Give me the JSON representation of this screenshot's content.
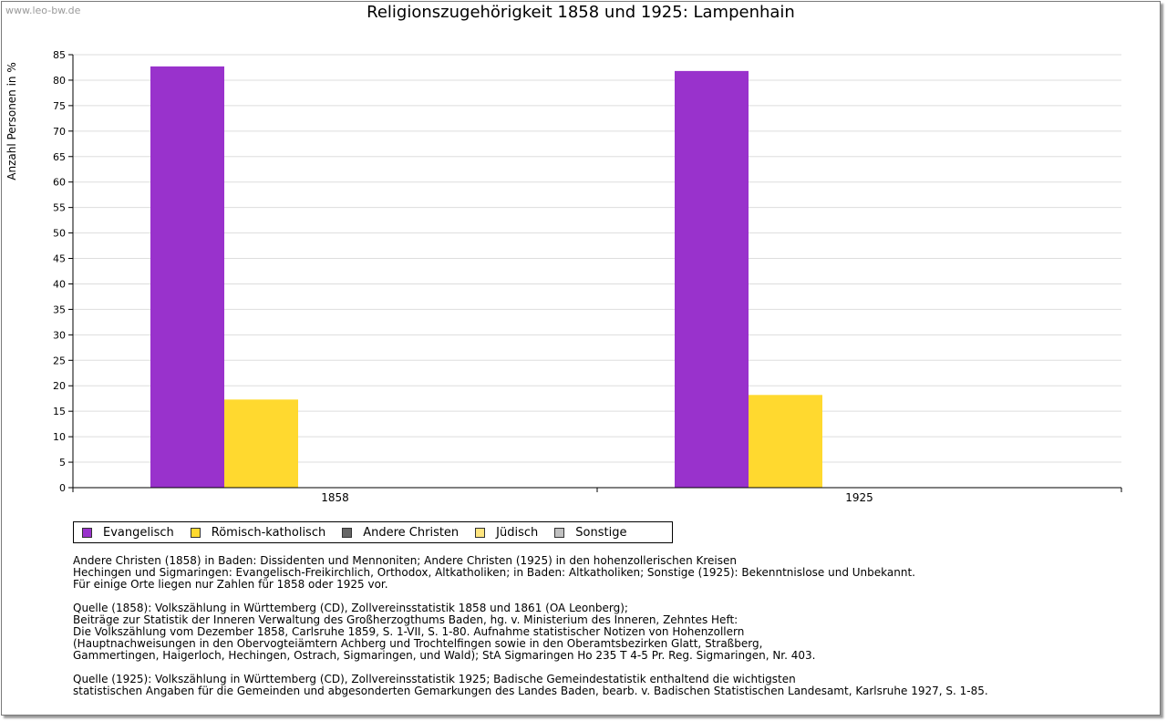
{
  "watermark": "www.leo-bw.de",
  "colors": {
    "evangelisch": "#9932cc",
    "roemisch_katholisch": "#ffd92f",
    "andere_christen": "#666666",
    "juedisch": "#ffe57f",
    "sonstige": "#c0c0c0",
    "grid": "#dddddd",
    "axis": "#000000"
  },
  "chart_data": {
    "type": "bar",
    "title": "Religionszugehörigkeit 1858 und 1925: Lampenhain",
    "ylabel": "Anzahl Personen in %",
    "xlabel": "",
    "categories": [
      "1858",
      "1925"
    ],
    "ylim": [
      0,
      85
    ],
    "yticks": [
      0,
      5,
      10,
      15,
      20,
      25,
      30,
      35,
      40,
      45,
      50,
      55,
      60,
      65,
      70,
      75,
      80,
      85
    ],
    "grid": true,
    "legend_position": "bottom-left",
    "series": [
      {
        "name": "Evangelisch",
        "color": "#9932cc",
        "values": [
          82.7,
          81.8
        ]
      },
      {
        "name": "Römisch-katholisch",
        "color": "#ffd92f",
        "values": [
          17.3,
          18.2
        ]
      },
      {
        "name": "Andere Christen",
        "color": "#666666",
        "values": [
          0,
          0
        ]
      },
      {
        "name": "Jüdisch",
        "color": "#ffe57f",
        "values": [
          0,
          0
        ]
      },
      {
        "name": "Sonstige",
        "color": "#c0c0c0",
        "values": [
          0,
          0
        ]
      }
    ]
  },
  "notes": [
    "Andere Christen (1858) in Baden: Dissidenten und Mennoniten; Andere Christen (1925) in den hohenzollerischen Kreisen",
    "Hechingen und Sigmaringen: Evangelisch-Freikirchlich, Orthodox, Altkatholiken; in Baden: Altkatholiken; Sonstige (1925): Bekenntnislose und Unbekannt.",
    "Für einige Orte liegen nur Zahlen für 1858 oder 1925 vor.",
    "",
    "Quelle (1858): Volkszählung in Württemberg (CD), Zollvereinsstatistik 1858 und 1861 (OA Leonberg);",
    "Beiträge zur Statistik der Inneren Verwaltung des Großherzogthums Baden, hg. v. Ministerium des Inneren, Zehntes Heft:",
    "Die Volkszählung vom Dezember 1858, Carlsruhe 1859, S. 1-VII, S. 1-80. Aufnahme statistischer Notizen von Hohenzollern",
    "(Hauptnachweisungen in den Obervogteiämtern Achberg und Trochtelfingen sowie in den Oberamtsbezirken Glatt, Straßberg,",
    "Gammertingen, Haigerloch, Hechingen, Ostrach, Sigmaringen, und Wald); StA Sigmaringen Ho 235 T 4-5 Pr. Reg. Sigmaringen, Nr. 403.",
    "",
    "Quelle (1925): Volkszählung in Württemberg (CD), Zollvereinsstatistik 1925; Badische Gemeindestatistik enthaltend die wichtigsten",
    "statistischen Angaben für die Gemeinden und abgesonderten Gemarkungen des Landes Baden, bearb. v. Badischen Statistischen Landesamt, Karlsruhe 1927, S. 1-85."
  ]
}
